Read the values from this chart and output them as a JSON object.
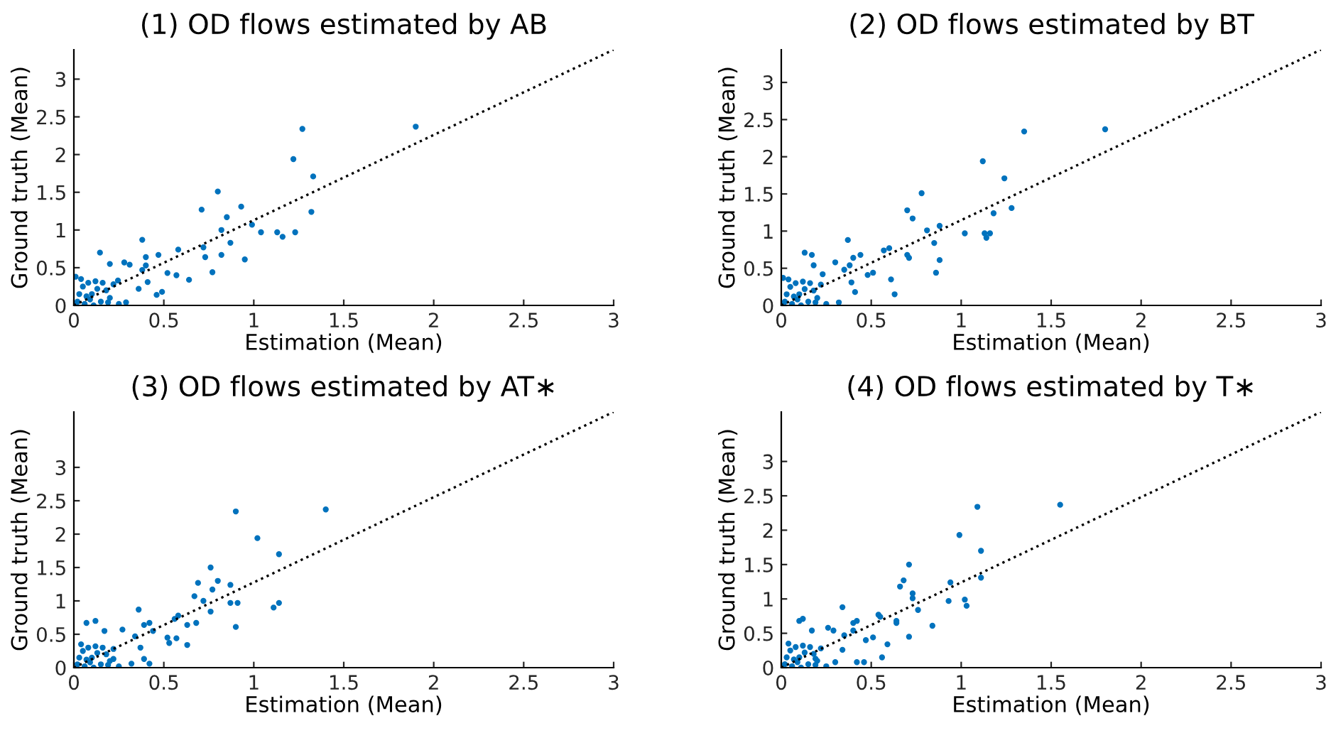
{
  "chart_data": [
    {
      "type": "scatter",
      "title": "(1) OD flows estimated by AB",
      "xlabel": "Estimation (Mean)",
      "ylabel": "Ground truth (Mean)",
      "xlim": [
        0,
        3
      ],
      "ylim": [
        0,
        3.39
      ],
      "xticks": [
        0,
        0.5,
        1,
        1.5,
        2,
        2.5,
        3
      ],
      "yticks": [
        0,
        0.5,
        1,
        1.5,
        2,
        2.5,
        3
      ],
      "marker": "circle",
      "series": [
        {
          "color": "#0072bd",
          "x": [
            1.9,
            1.27,
            1.22,
            1.33,
            0.8,
            0.93,
            0.71,
            1.32,
            0.85,
            0.99,
            0.82,
            1.13,
            1.04,
            1.23,
            1.16,
            0.38,
            0.87,
            0.72,
            0.58,
            0.145,
            0.73,
            0.82,
            0.47,
            0.4,
            0.95,
            0.2,
            0.28,
            0.31,
            0.4,
            0.52,
            0.77,
            0.57,
            0.64,
            0.49,
            0.46,
            0.29,
            0.38,
            0.41,
            0.36,
            0.245,
            0.01,
            0.02,
            0.05,
            0.08,
            0.1,
            0.12,
            0.15,
            0.18,
            0.2,
            0.03,
            0.06,
            0.09,
            0.13,
            0.22,
            0.25,
            0.01,
            0.04,
            0.16,
            0.11,
            0.07,
            0.19
          ],
          "values": [
            2.37,
            2.34,
            1.94,
            1.71,
            1.51,
            1.31,
            1.27,
            1.24,
            1.17,
            1.07,
            1.0,
            0.97,
            0.97,
            0.97,
            0.91,
            0.87,
            0.83,
            0.77,
            0.74,
            0.7,
            0.64,
            0.67,
            0.67,
            0.64,
            0.61,
            0.55,
            0.57,
            0.54,
            0.53,
            0.43,
            0.44,
            0.4,
            0.34,
            0.18,
            0.14,
            0.04,
            0.47,
            0.31,
            0.22,
            0.33,
            0.38,
            0.05,
            0.25,
            0.3,
            0.15,
            0.32,
            0.05,
            0.2,
            0.1,
            0.15,
            0.02,
            0.08,
            0.22,
            0.28,
            0.02,
            0.01,
            0.35,
            0.3,
            0.0,
            0.12,
            0.04
          ]
        },
        {
          "type": "line",
          "color": "#000000",
          "line_style": "dotted",
          "marker": "none",
          "x": [
            0,
            3
          ],
          "values": [
            0,
            3.39
          ]
        }
      ]
    },
    {
      "type": "scatter",
      "title": "(2) OD flows estimated by BT",
      "xlabel": "Estimation (Mean)",
      "ylabel": "Ground truth (Mean)",
      "xlim": [
        0,
        3
      ],
      "ylim": [
        0,
        3.44
      ],
      "xticks": [
        0,
        0.5,
        1,
        1.5,
        2,
        2.5,
        3
      ],
      "yticks": [
        0,
        0.5,
        1,
        1.5,
        2,
        2.5,
        3
      ],
      "marker": "circle",
      "series": [
        {
          "color": "#0072bd",
          "x": [
            1.8,
            1.35,
            1.12,
            1.24,
            0.78,
            1.28,
            0.7,
            1.18,
            0.73,
            0.88,
            0.81,
            1.02,
            1.13,
            1.16,
            1.14,
            0.37,
            0.85,
            0.6,
            0.57,
            0.13,
            0.17,
            0.44,
            0.7,
            0.71,
            0.4,
            0.88,
            0.18,
            0.3,
            0.38,
            0.51,
            0.86,
            0.48,
            0.61,
            0.63,
            0.41,
            0.32,
            0.35,
            0.39,
            0.01,
            0.23,
            0.02,
            0.05,
            0.08,
            0.1,
            0.12,
            0.15,
            0.18,
            0.2,
            0.03,
            0.06,
            0.09,
            0.13,
            0.22,
            0.25,
            0.01,
            0.04,
            0.16,
            0.11,
            0.07,
            0.19
          ],
          "values": [
            2.37,
            2.34,
            1.94,
            1.71,
            1.51,
            1.31,
            1.28,
            1.24,
            1.17,
            1.07,
            1.01,
            0.97,
            0.97,
            0.97,
            0.91,
            0.88,
            0.84,
            0.77,
            0.74,
            0.71,
            0.68,
            0.68,
            0.68,
            0.64,
            0.64,
            0.61,
            0.54,
            0.58,
            0.54,
            0.44,
            0.44,
            0.41,
            0.35,
            0.15,
            0.18,
            0.04,
            0.48,
            0.31,
            0.37,
            0.42,
            0.05,
            0.25,
            0.3,
            0.15,
            0.32,
            0.05,
            0.2,
            0.1,
            0.15,
            0.02,
            0.08,
            0.22,
            0.28,
            0.02,
            0.01,
            0.35,
            0.3,
            0.0,
            0.12,
            0.04
          ]
        },
        {
          "type": "line",
          "color": "#000000",
          "line_style": "dotted",
          "marker": "none",
          "x": [
            0,
            3
          ],
          "values": [
            0,
            3.44
          ]
        }
      ]
    },
    {
      "type": "scatter",
      "title": "(3) OD flows estimated by AT∗",
      "xlabel": "Estimation (Mean)",
      "ylabel": "Ground truth (Mean)",
      "xlim": [
        0,
        3
      ],
      "ylim": [
        0,
        3.83
      ],
      "xticks": [
        0,
        0.5,
        1,
        1.5,
        2,
        2.5,
        3
      ],
      "yticks": [
        0,
        0.5,
        1,
        1.5,
        2,
        2.5,
        3
      ],
      "marker": "circle",
      "series": [
        {
          "color": "#0072bd",
          "x": [
            1.4,
            0.9,
            1.02,
            1.14,
            0.76,
            0.8,
            0.69,
            0.87,
            0.77,
            0.67,
            0.72,
            0.87,
            0.91,
            1.14,
            1.11,
            0.76,
            0.36,
            0.58,
            0.56,
            0.12,
            0.07,
            0.68,
            0.42,
            0.39,
            0.63,
            0.9,
            0.17,
            0.27,
            0.44,
            0.52,
            0.57,
            0.53,
            0.63,
            0.34,
            0.37,
            0.39,
            0.42,
            0.32,
            0.22,
            0.02,
            0.05,
            0.08,
            0.1,
            0.12,
            0.15,
            0.18,
            0.2,
            0.03,
            0.06,
            0.09,
            0.13,
            0.22,
            0.25,
            0.04,
            0.16,
            0.11,
            0.07,
            0.19
          ],
          "values": [
            2.37,
            2.34,
            1.94,
            1.7,
            1.5,
            1.3,
            1.27,
            1.24,
            1.17,
            1.07,
            1.0,
            0.97,
            0.97,
            0.97,
            0.9,
            0.84,
            0.87,
            0.78,
            0.73,
            0.7,
            0.67,
            0.67,
            0.67,
            0.64,
            0.64,
            0.61,
            0.55,
            0.57,
            0.55,
            0.45,
            0.44,
            0.37,
            0.34,
            0.47,
            0.3,
            0.13,
            0.06,
            0.06,
            0.13,
            0.05,
            0.25,
            0.3,
            0.15,
            0.32,
            0.05,
            0.2,
            0.1,
            0.15,
            0.02,
            0.08,
            0.22,
            0.28,
            0.02,
            0.35,
            0.3,
            0.0,
            0.12,
            0.04
          ]
        },
        {
          "type": "line",
          "color": "#000000",
          "line_style": "dotted",
          "marker": "none",
          "x": [
            0,
            3
          ],
          "values": [
            0,
            3.83
          ]
        }
      ]
    },
    {
      "type": "scatter",
      "title": "(4) OD flows estimated by T∗",
      "xlabel": "Estimation (Mean)",
      "ylabel": "Ground truth (Mean)",
      "xlim": [
        0,
        3
      ],
      "ylim": [
        0,
        3.72
      ],
      "xticks": [
        0,
        0.5,
        1,
        1.5,
        2,
        2.5,
        3
      ],
      "yticks": [
        0,
        0.5,
        1,
        1.5,
        2,
        2.5,
        3
      ],
      "marker": "circle",
      "series": [
        {
          "color": "#0072bd",
          "x": [
            1.55,
            1.09,
            0.99,
            1.11,
            0.71,
            1.11,
            0.68,
            0.94,
            0.66,
            0.73,
            0.73,
            0.93,
            1.02,
            1.03,
            0.34,
            0.76,
            0.54,
            0.55,
            0.12,
            0.1,
            0.64,
            0.64,
            0.42,
            0.4,
            0.84,
            0.17,
            0.26,
            0.29,
            0.4,
            0.51,
            0.71,
            0.47,
            0.59,
            0.35,
            0.34,
            0.56,
            0.42,
            0.46,
            0.3,
            0.19,
            0.02,
            0.05,
            0.08,
            0.1,
            0.12,
            0.15,
            0.18,
            0.2,
            0.03,
            0.06,
            0.09,
            0.13,
            0.22,
            0.25,
            0.01,
            0.04,
            0.16,
            0.11,
            0.07,
            0.19
          ],
          "values": [
            2.37,
            2.34,
            1.93,
            1.7,
            1.5,
            1.31,
            1.27,
            1.24,
            1.18,
            1.08,
            1.01,
            0.97,
            0.99,
            0.9,
            0.88,
            0.84,
            0.77,
            0.74,
            0.71,
            0.68,
            0.68,
            0.65,
            0.68,
            0.65,
            0.61,
            0.54,
            0.58,
            0.54,
            0.54,
            0.44,
            0.45,
            0.4,
            0.34,
            0.47,
            0.26,
            0.15,
            0.08,
            0.08,
            0.08,
            0.13,
            0.05,
            0.25,
            0.3,
            0.15,
            0.32,
            0.05,
            0.2,
            0.1,
            0.15,
            0.02,
            0.08,
            0.22,
            0.28,
            0.02,
            0.01,
            0.35,
            0.3,
            0.0,
            0.12,
            0.04
          ]
        },
        {
          "type": "line",
          "color": "#000000",
          "line_style": "dotted",
          "marker": "none",
          "x": [
            0,
            3
          ],
          "values": [
            0,
            3.72
          ]
        }
      ]
    }
  ]
}
